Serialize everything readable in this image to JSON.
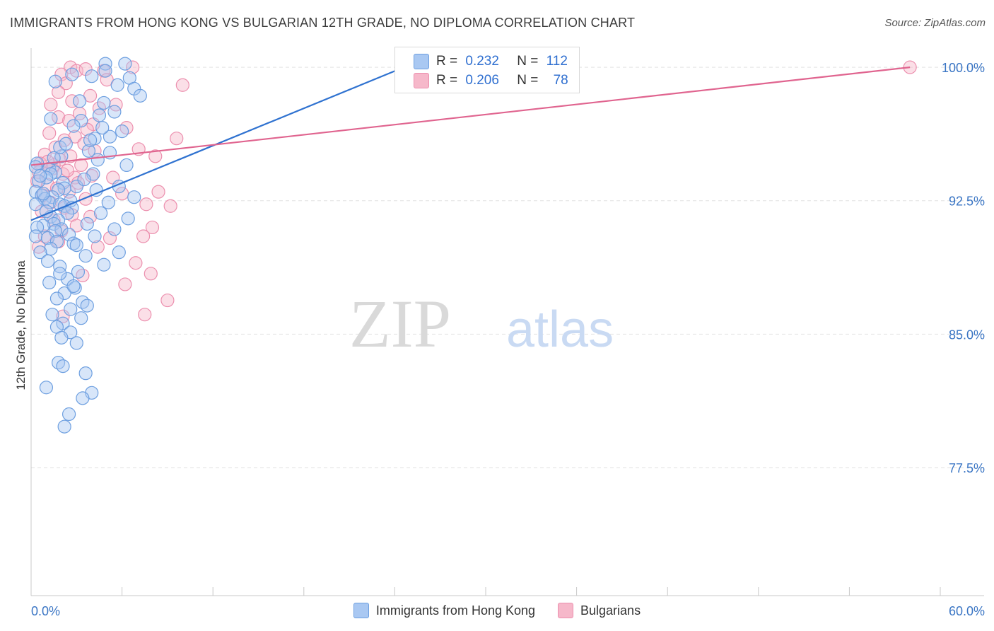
{
  "header": {
    "title": "IMMIGRANTS FROM HONG KONG VS BULGARIAN 12TH GRADE, NO DIPLOMA CORRELATION CHART",
    "source": "Source: ZipAtlas.com"
  },
  "watermark": {
    "zip": "ZIP",
    "atlas": "atlas"
  },
  "colors": {
    "blue_fill": "#a9c8f2",
    "blue_stroke": "#6d9fe0",
    "blue_line": "#2f72d0",
    "pink_fill": "#f6b8ca",
    "pink_stroke": "#ec8fae",
    "pink_line": "#e0648f",
    "tick_label": "#3a75c4"
  },
  "stats_legend": [
    {
      "r_label": "R =",
      "r_value": "0.232",
      "n_label": "N =",
      "n_value": "112",
      "color": "#a9c8f2"
    },
    {
      "r_label": "R =",
      "r_value": "0.206",
      "n_label": "N =",
      "n_value": "78",
      "color": "#f6b8ca"
    }
  ],
  "legend": [
    {
      "label": "Immigrants from Hong Kong",
      "color": "#a9c8f2"
    },
    {
      "label": "Bulgarians",
      "color": "#f6b8ca"
    }
  ],
  "chart_data": {
    "type": "scatter",
    "title": "IMMIGRANTS FROM HONG KONG VS BULGARIAN 12TH GRADE, NO DIPLOMA CORRELATION CHART",
    "xlabel": "",
    "ylabel": "12th Grade, No Diploma",
    "xlim": [
      0,
      60
    ],
    "ylim": [
      70.3,
      100.8
    ],
    "x_tick_labels": [
      "0.0%",
      "60.0%"
    ],
    "y_ticks": [
      100.0,
      92.5,
      85.0,
      77.5
    ],
    "y_tick_labels": [
      "100.0%",
      "92.5%",
      "85.0%",
      "77.5%"
    ],
    "grid": true,
    "legend_position": "bottom",
    "series": [
      {
        "name": "Immigrants from Hong Kong",
        "trend": {
          "x0": 0.0,
          "y0": 91.4,
          "x1": 24.6,
          "y1": 100.0
        },
        "points": [
          [
            1.3,
            97.1
          ],
          [
            1.6,
            99.2
          ],
          [
            4.0,
            99.5
          ],
          [
            4.5,
            97.3
          ],
          [
            4.9,
            100.2
          ],
          [
            4.9,
            99.8
          ],
          [
            5.2,
            96.1
          ],
          [
            4.2,
            96.0
          ],
          [
            3.8,
            95.3
          ],
          [
            2.0,
            95.0
          ],
          [
            1.9,
            95.5
          ],
          [
            0.4,
            94.6
          ],
          [
            0.3,
            94.4
          ],
          [
            1.2,
            94.3
          ],
          [
            1.6,
            94.1
          ],
          [
            1.3,
            94.0
          ],
          [
            1.0,
            93.8
          ],
          [
            0.5,
            93.6
          ],
          [
            2.1,
            93.5
          ],
          [
            3.0,
            93.3
          ],
          [
            2.2,
            93.2
          ],
          [
            1.8,
            93.1
          ],
          [
            0.3,
            93.0
          ],
          [
            0.7,
            92.8
          ],
          [
            1.4,
            92.7
          ],
          [
            0.9,
            92.6
          ],
          [
            2.6,
            92.5
          ],
          [
            1.2,
            92.4
          ],
          [
            0.3,
            92.3
          ],
          [
            1.9,
            92.3
          ],
          [
            2.2,
            92.2
          ],
          [
            2.7,
            92.1
          ],
          [
            2.4,
            91.8
          ],
          [
            1.3,
            91.6
          ],
          [
            1.8,
            91.4
          ],
          [
            1.5,
            91.2
          ],
          [
            0.8,
            91.1
          ],
          [
            0.4,
            91.0
          ],
          [
            2.0,
            90.9
          ],
          [
            1.6,
            90.8
          ],
          [
            2.5,
            90.6
          ],
          [
            0.3,
            90.5
          ],
          [
            1.1,
            90.4
          ],
          [
            1.7,
            90.2
          ],
          [
            2.8,
            90.1
          ],
          [
            1.3,
            89.8
          ],
          [
            0.6,
            89.6
          ],
          [
            3.6,
            89.4
          ],
          [
            1.1,
            89.1
          ],
          [
            1.9,
            88.8
          ],
          [
            3.1,
            88.5
          ],
          [
            2.4,
            88.1
          ],
          [
            1.2,
            87.9
          ],
          [
            2.9,
            87.6
          ],
          [
            2.2,
            87.3
          ],
          [
            1.7,
            87.0
          ],
          [
            3.4,
            86.8
          ],
          [
            2.6,
            86.4
          ],
          [
            1.4,
            86.1
          ],
          [
            2.1,
            85.6
          ],
          [
            1.7,
            85.4
          ],
          [
            2.6,
            85.1
          ],
          [
            2.0,
            84.8
          ],
          [
            3.0,
            84.5
          ],
          [
            1.8,
            83.4
          ],
          [
            2.1,
            83.2
          ],
          [
            3.6,
            82.8
          ],
          [
            1.0,
            82.0
          ],
          [
            4.0,
            81.7
          ],
          [
            3.4,
            81.4
          ],
          [
            2.5,
            80.5
          ],
          [
            2.2,
            79.8
          ],
          [
            5.7,
            99.0
          ],
          [
            6.2,
            100.2
          ],
          [
            6.5,
            99.4
          ],
          [
            6.8,
            98.8
          ],
          [
            7.2,
            98.4
          ],
          [
            4.8,
            98.0
          ],
          [
            5.5,
            97.5
          ],
          [
            3.3,
            97.0
          ],
          [
            4.7,
            96.6
          ],
          [
            6.0,
            96.4
          ],
          [
            3.9,
            95.9
          ],
          [
            5.2,
            95.2
          ],
          [
            4.4,
            94.8
          ],
          [
            6.3,
            94.5
          ],
          [
            4.1,
            94.0
          ],
          [
            3.5,
            93.7
          ],
          [
            5.8,
            93.3
          ],
          [
            4.3,
            93.1
          ],
          [
            6.8,
            92.7
          ],
          [
            5.1,
            92.4
          ],
          [
            4.6,
            91.8
          ],
          [
            6.4,
            91.5
          ],
          [
            3.7,
            91.2
          ],
          [
            5.5,
            90.9
          ],
          [
            4.2,
            90.5
          ],
          [
            3.0,
            90.0
          ],
          [
            5.8,
            89.6
          ],
          [
            4.8,
            88.9
          ],
          [
            2.8,
            87.7
          ],
          [
            3.7,
            86.6
          ],
          [
            1.0,
            91.9
          ],
          [
            0.8,
            92.9
          ],
          [
            0.6,
            93.9
          ],
          [
            1.5,
            94.9
          ],
          [
            2.3,
            95.7
          ],
          [
            2.8,
            96.7
          ],
          [
            3.2,
            98.1
          ],
          [
            2.7,
            99.6
          ],
          [
            1.9,
            88.4
          ],
          [
            3.3,
            85.9
          ]
        ]
      },
      {
        "name": "Bulgarians",
        "trend": {
          "x0": 0.0,
          "y0": 94.5,
          "x1": 58.0,
          "y1": 100.0
        },
        "points": [
          [
            2.6,
            100.0
          ],
          [
            3.0,
            99.8
          ],
          [
            3.6,
            99.9
          ],
          [
            4.8,
            99.8
          ],
          [
            6.7,
            100.0
          ],
          [
            10.0,
            99.0
          ],
          [
            2.0,
            99.6
          ],
          [
            2.3,
            99.1
          ],
          [
            1.8,
            98.6
          ],
          [
            3.9,
            98.4
          ],
          [
            2.7,
            98.1
          ],
          [
            1.3,
            97.9
          ],
          [
            4.5,
            97.7
          ],
          [
            3.2,
            97.4
          ],
          [
            1.8,
            97.2
          ],
          [
            2.5,
            97.0
          ],
          [
            4.1,
            96.8
          ],
          [
            3.7,
            96.5
          ],
          [
            1.2,
            96.3
          ],
          [
            2.9,
            96.1
          ],
          [
            2.2,
            95.9
          ],
          [
            3.5,
            95.7
          ],
          [
            1.6,
            95.5
          ],
          [
            4.2,
            95.3
          ],
          [
            0.9,
            95.1
          ],
          [
            2.6,
            95.0
          ],
          [
            1.9,
            94.8
          ],
          [
            0.6,
            94.6
          ],
          [
            3.3,
            94.5
          ],
          [
            1.4,
            94.3
          ],
          [
            0.5,
            94.1
          ],
          [
            2.1,
            94.0
          ],
          [
            2.9,
            93.8
          ],
          [
            0.4,
            93.6
          ],
          [
            1.1,
            93.4
          ],
          [
            1.7,
            93.2
          ],
          [
            2.5,
            93.0
          ],
          [
            0.8,
            92.8
          ],
          [
            3.6,
            92.6
          ],
          [
            1.3,
            92.4
          ],
          [
            2.2,
            92.1
          ],
          [
            0.7,
            91.9
          ],
          [
            2.7,
            91.7
          ],
          [
            1.5,
            91.4
          ],
          [
            3.0,
            91.1
          ],
          [
            2.0,
            90.8
          ],
          [
            0.9,
            90.5
          ],
          [
            1.8,
            90.2
          ],
          [
            0.5,
            89.9
          ],
          [
            5.0,
            99.3
          ],
          [
            5.6,
            97.9
          ],
          [
            6.3,
            96.6
          ],
          [
            7.1,
            95.4
          ],
          [
            8.2,
            95.0
          ],
          [
            5.4,
            93.8
          ],
          [
            6.0,
            92.9
          ],
          [
            7.6,
            92.3
          ],
          [
            8.0,
            91.0
          ],
          [
            5.2,
            90.4
          ],
          [
            6.9,
            89.0
          ],
          [
            7.9,
            88.4
          ],
          [
            6.2,
            87.8
          ],
          [
            9.6,
            96.0
          ],
          [
            8.4,
            93.0
          ],
          [
            9.2,
            92.2
          ],
          [
            7.4,
            90.5
          ],
          [
            9.0,
            86.9
          ],
          [
            7.5,
            86.1
          ],
          [
            3.4,
            88.3
          ],
          [
            2.1,
            86.0
          ],
          [
            1.5,
            94.5
          ],
          [
            2.4,
            94.2
          ],
          [
            1.1,
            94.7
          ],
          [
            3.1,
            93.5
          ],
          [
            4.0,
            93.9
          ],
          [
            3.9,
            91.6
          ],
          [
            4.4,
            89.9
          ],
          [
            58.0,
            100.0
          ]
        ]
      }
    ]
  }
}
